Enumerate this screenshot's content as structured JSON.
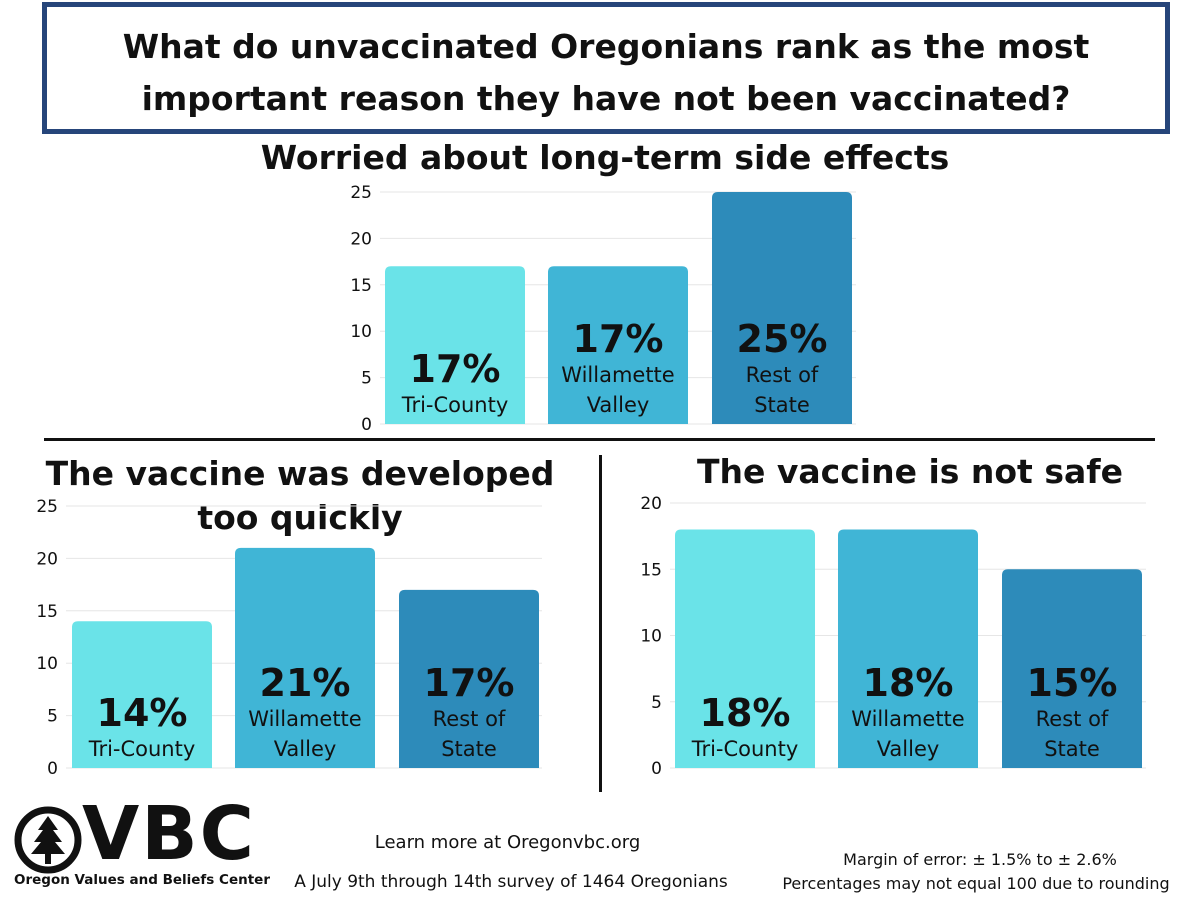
{
  "header": {
    "title_line1": "What do unvaccinated Oregonians rank as the most",
    "title_line2": "important  reason they have not been vaccinated?"
  },
  "colors": {
    "tri_county": "#6ae3e8",
    "willamette_valley": "#40b5d6",
    "rest_of_state": "#2d8bba",
    "title_border": "#26457a",
    "grid": "#e6e6e6"
  },
  "chart_data": [
    {
      "type": "bar",
      "title": "Worried about long-term side effects",
      "categories": [
        "Tri-County",
        "Willamette Valley",
        "Rest of State"
      ],
      "values": [
        17,
        17,
        25
      ],
      "value_labels": [
        "17%",
        "17%",
        "25%"
      ],
      "category_label_lines": [
        [
          "Tri-County"
        ],
        [
          "Willamette",
          "Valley"
        ],
        [
          "Rest of",
          "State"
        ]
      ],
      "ylim": [
        0,
        25
      ],
      "yticks": [
        0,
        5,
        10,
        15,
        20,
        25
      ],
      "grid": true
    },
    {
      "type": "bar",
      "title": "The vaccine was developed too quickly",
      "title_lines": [
        "The vaccine was developed",
        "too quickly"
      ],
      "categories": [
        "Tri-County",
        "Willamette Valley",
        "Rest of State"
      ],
      "values": [
        14,
        21,
        17
      ],
      "value_labels": [
        "14%",
        "21%",
        "17%"
      ],
      "category_label_lines": [
        [
          "Tri-County"
        ],
        [
          "Willamette",
          "Valley"
        ],
        [
          "Rest of",
          "State"
        ]
      ],
      "ylim": [
        0,
        25
      ],
      "yticks": [
        0,
        5,
        10,
        15,
        20,
        25
      ],
      "grid": true
    },
    {
      "type": "bar",
      "title": "The vaccine is not safe",
      "categories": [
        "Tri-County",
        "Willamette Valley",
        "Rest of State"
      ],
      "values": [
        18,
        18,
        15
      ],
      "value_labels": [
        "18%",
        "18%",
        "15%"
      ],
      "category_label_lines": [
        [
          "Tri-County"
        ],
        [
          "Willamette",
          "Valley"
        ],
        [
          "Rest of",
          "State"
        ]
      ],
      "ylim": [
        0,
        20
      ],
      "yticks": [
        0,
        5,
        10,
        15,
        20
      ],
      "grid": true
    }
  ],
  "footer": {
    "logo_text": "VBC",
    "logo_subtitle": "Oregon Values and Beliefs Center",
    "learn_more": "Learn more at Oregonvbc.org",
    "survey_note": "A July 9th through 14th survey of 1464 Oregonians",
    "margin_of_error": "Margin of error: ± 1.5% to ± 2.6%",
    "rounding_note": "Percentages may not equal 100 due to rounding"
  }
}
